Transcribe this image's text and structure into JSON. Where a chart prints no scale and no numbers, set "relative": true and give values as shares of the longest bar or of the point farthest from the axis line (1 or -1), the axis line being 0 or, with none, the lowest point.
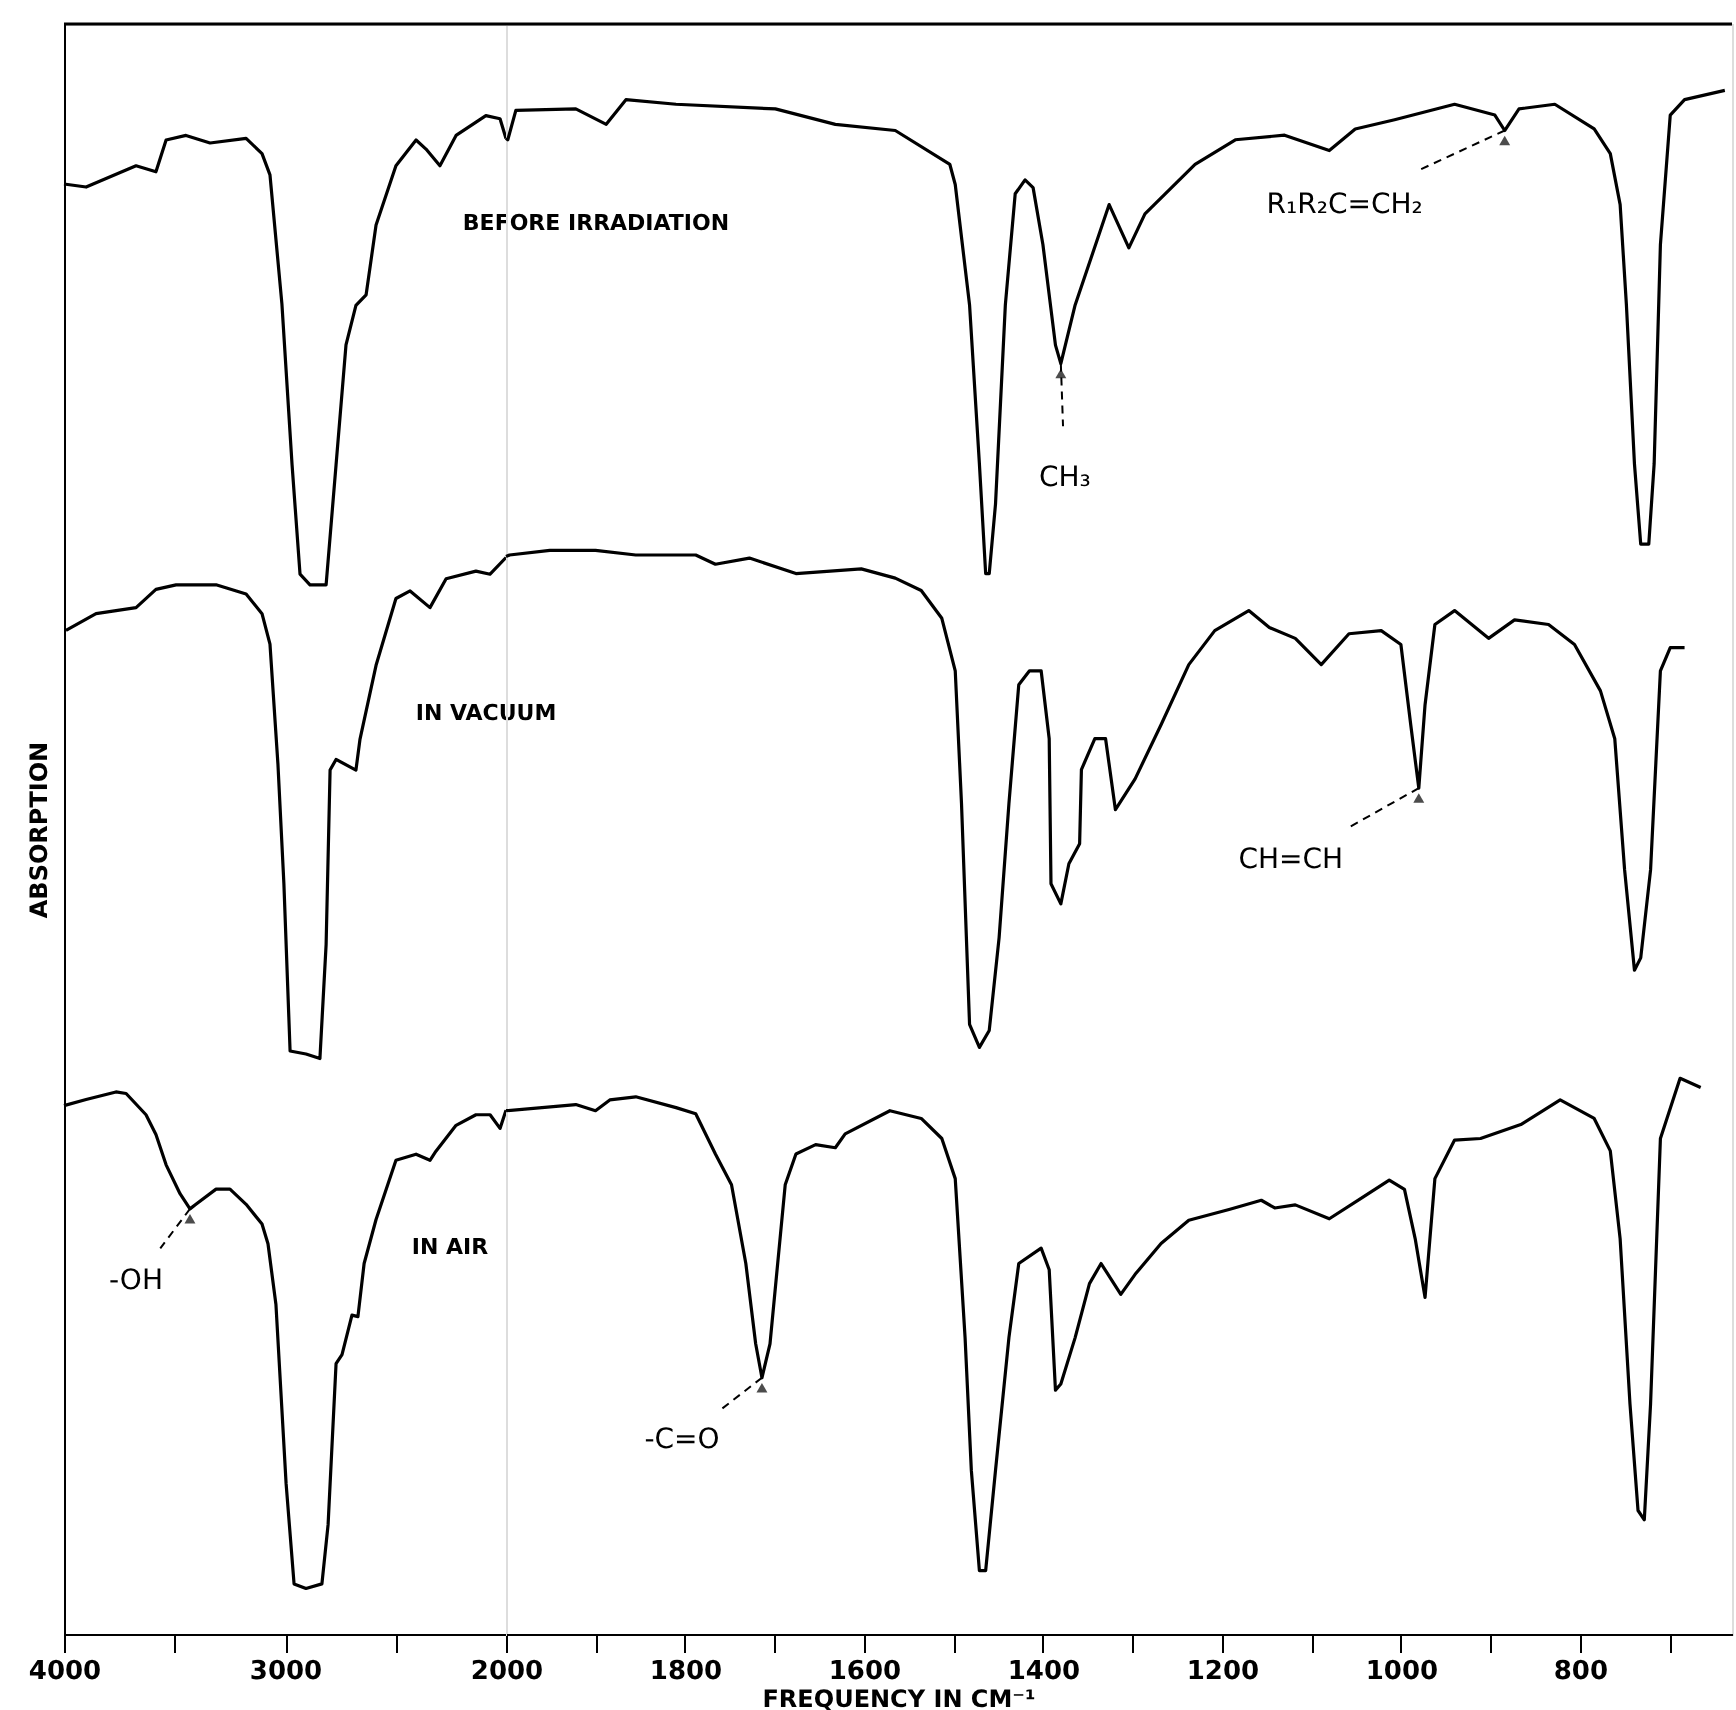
{
  "chart_data": [
    {
      "type": "line",
      "relative": true,
      "ylabel": "ABSORPTION",
      "legend": false,
      "grid": false,
      "marker": "none",
      "line_style": "solid",
      "xlim": [
        4000,
        2000
      ],
      "xticks": [
        4000,
        {
          "value": 3500,
          "label": null
        },
        3000,
        {
          "value": 2500,
          "label": null
        },
        2000
      ],
      "series": [
        {
          "name": "BEFORE IRRADIATION",
          "color": "#000000",
          "x": [
            4000,
            3900,
            3674,
            3584,
            3538,
            3448,
            3339,
            3176,
            3104,
            3068,
            3014,
            2968,
            2932,
            2887,
            2814,
            2769,
            2724,
            2679,
            2633,
            2588,
            2498,
            2407,
            2362,
            2299,
            2226,
            2091,
            2027,
            2000
          ],
          "values": [
            0.955,
            0.953,
            0.967,
            0.963,
            0.984,
            0.987,
            0.982,
            0.985,
            0.975,
            0.961,
            0.876,
            0.77,
            0.698,
            0.691,
            0.691,
            0.77,
            0.849,
            0.875,
            0.882,
            0.928,
            0.967,
            0.984,
            0.978,
            0.967,
            0.987,
            1.0,
            0.998,
            0.985
          ]
        },
        {
          "name": "IN VACUUM",
          "color": "#000000",
          "x": [
            3991,
            3855,
            3674,
            3584,
            3493,
            3312,
            3176,
            3104,
            3068,
            3032,
            3005,
            2977,
            2905,
            2842,
            2814,
            2796,
            2769,
            2679,
            2661,
            2588,
            2498,
            2434,
            2344,
            2271,
            2136,
            2072,
            2000
          ],
          "values": [
            0.661,
            0.672,
            0.676,
            0.688,
            0.691,
            0.691,
            0.685,
            0.672,
            0.652,
            0.573,
            0.494,
            0.384,
            0.382,
            0.379,
            0.454,
            0.569,
            0.576,
            0.569,
            0.589,
            0.638,
            0.682,
            0.687,
            0.676,
            0.695,
            0.7,
            0.698,
            0.709
          ]
        },
        {
          "name": "IN AIR",
          "color": "#000000",
          "x": [
            4000,
            3900,
            3765,
            3719,
            3629,
            3584,
            3538,
            3475,
            3430,
            3403,
            3312,
            3249,
            3176,
            3104,
            3077,
            3041,
            2995,
            2959,
            2905,
            2833,
            2805,
            2769,
            2742,
            2697,
            2670,
            2642,
            2588,
            2498,
            2407,
            2344,
            2317,
            2226,
            2136,
            2072,
            2027,
            2000
          ],
          "values": [
            0.348,
            0.352,
            0.357,
            0.356,
            0.342,
            0.329,
            0.309,
            0.29,
            0.28,
            0.283,
            0.293,
            0.293,
            0.283,
            0.27,
            0.257,
            0.217,
            0.099,
            0.033,
            0.03,
            0.033,
            0.072,
            0.178,
            0.184,
            0.21,
            0.209,
            0.244,
            0.273,
            0.312,
            0.316,
            0.312,
            0.318,
            0.335,
            0.342,
            0.342,
            0.333,
            0.345
          ]
        }
      ],
      "annotations": [
        {
          "text": "-OH",
          "x": 3430,
          "y": 0.28
        }
      ]
    },
    {
      "type": "line",
      "relative": true,
      "xlabel": "FREQUENCY IN CM⁻¹",
      "legend": false,
      "grid": false,
      "marker": "none",
      "line_style": "solid",
      "xlim": [
        2000,
        630
      ],
      "xticks": [
        {
          "value": 1900,
          "label": null
        },
        1800,
        {
          "value": 1700,
          "label": null
        },
        1600,
        {
          "value": 1500,
          "label": null
        },
        1400,
        {
          "value": 1300,
          "label": null
        },
        1200,
        {
          "value": 1100,
          "label": null
        },
        1000,
        {
          "value": 900,
          "label": null
        },
        800,
        {
          "value": 700,
          "label": null
        }
      ],
      "series": [
        {
          "color": "#000000",
          "x": [
            2000,
            1998,
            1989,
            1922,
            1888,
            1866,
            1810,
            1699,
            1632,
            1565,
            1504,
            1498,
            1482,
            1471,
            1464,
            1460,
            1453,
            1442,
            1431,
            1420,
            1411,
            1400,
            1386,
            1380,
            1364,
            1326,
            1304,
            1286,
            1230,
            1185,
            1130,
            1080,
            1051,
            1007,
            940,
            895,
            884,
            868,
            828,
            784,
            766,
            755,
            748,
            739,
            732,
            723,
            717,
            710,
            699,
            683,
            638
          ],
          "values": [
            0.969,
            0.968,
            0.987,
            0.988,
            0.978,
            0.994,
            0.991,
            0.988,
            0.978,
            0.974,
            0.952,
            0.939,
            0.861,
            0.758,
            0.687,
            0.687,
            0.732,
            0.861,
            0.933,
            0.942,
            0.937,
            0.9,
            0.835,
            0.823,
            0.861,
            0.926,
            0.898,
            0.92,
            0.952,
            0.968,
            0.971,
            0.961,
            0.975,
            0.981,
            0.991,
            0.984,
            0.974,
            0.988,
            0.991,
            0.975,
            0.959,
            0.926,
            0.861,
            0.758,
            0.706,
            0.706,
            0.758,
            0.9,
            0.984,
            0.994,
            1.0
          ]
        },
        {
          "color": "#000000",
          "x": [
            2000,
            1996,
            1951,
            1900,
            1855,
            1788,
            1766,
            1728,
            1676,
            1603,
            1565,
            1536,
            1513,
            1498,
            1491,
            1482,
            1471,
            1460,
            1449,
            1438,
            1427,
            1415,
            1402,
            1393,
            1391,
            1380,
            1371,
            1359,
            1357,
            1342,
            1330,
            1319,
            1297,
            1268,
            1237,
            1208,
            1170,
            1147,
            1118,
            1089,
            1058,
            1022,
            1000,
            989,
            980,
            973,
            962,
            940,
            902,
            873,
            835,
            806,
            777,
            761,
            750,
            739,
            732,
            721,
            710,
            699,
            683
          ],
          "values": [
            0.698,
            0.699,
            0.702,
            0.702,
            0.699,
            0.699,
            0.693,
            0.697,
            0.687,
            0.69,
            0.684,
            0.676,
            0.658,
            0.624,
            0.538,
            0.395,
            0.38,
            0.391,
            0.451,
            0.538,
            0.615,
            0.624,
            0.624,
            0.58,
            0.486,
            0.473,
            0.499,
            0.512,
            0.56,
            0.58,
            0.58,
            0.534,
            0.554,
            0.589,
            0.628,
            0.65,
            0.663,
            0.652,
            0.645,
            0.628,
            0.648,
            0.65,
            0.641,
            0.589,
            0.548,
            0.602,
            0.654,
            0.663,
            0.645,
            0.657,
            0.654,
            0.641,
            0.611,
            0.58,
            0.495,
            0.43,
            0.438,
            0.495,
            0.624,
            0.639,
            0.639
          ]
        },
        {
          "color": "#000000",
          "x": [
            2000,
            1922,
            1900,
            1884,
            1855,
            1810,
            1788,
            1766,
            1748,
            1732,
            1721,
            1714,
            1705,
            1688,
            1676,
            1654,
            1632,
            1621,
            1571,
            1536,
            1513,
            1498,
            1487,
            1480,
            1471,
            1464,
            1453,
            1438,
            1427,
            1402,
            1393,
            1386,
            1380,
            1364,
            1348,
            1335,
            1313,
            1297,
            1268,
            1237,
            1192,
            1156,
            1141,
            1118,
            1080,
            1045,
            1013,
            996,
            984,
            973,
            962,
            940,
            911,
            866,
            822,
            784,
            766,
            755,
            744,
            735,
            728,
            721,
            710,
            688,
            665
          ],
          "values": [
            0.339,
            0.343,
            0.339,
            0.346,
            0.348,
            0.341,
            0.337,
            0.311,
            0.291,
            0.24,
            0.188,
            0.166,
            0.188,
            0.291,
            0.311,
            0.317,
            0.315,
            0.324,
            0.339,
            0.334,
            0.321,
            0.295,
            0.192,
            0.106,
            0.041,
            0.041,
            0.106,
            0.192,
            0.24,
            0.25,
            0.236,
            0.158,
            0.162,
            0.192,
            0.227,
            0.24,
            0.22,
            0.233,
            0.253,
            0.268,
            0.275,
            0.281,
            0.276,
            0.278,
            0.269,
            0.282,
            0.294,
            0.288,
            0.256,
            0.218,
            0.295,
            0.32,
            0.321,
            0.33,
            0.346,
            0.334,
            0.313,
            0.256,
            0.149,
            0.08,
            0.074,
            0.149,
            0.321,
            0.36,
            0.354
          ]
        }
      ],
      "annotations": [
        {
          "text": "R₁R₂C=CH₂",
          "x": 884,
          "y": 0.974
        },
        {
          "text": "CH₃",
          "x": 1380,
          "y": 0.823
        },
        {
          "text": "CH=CH",
          "x": 980,
          "y": 0.548
        },
        {
          "text": "-C=O",
          "x": 1714,
          "y": 0.166
        }
      ]
    }
  ]
}
